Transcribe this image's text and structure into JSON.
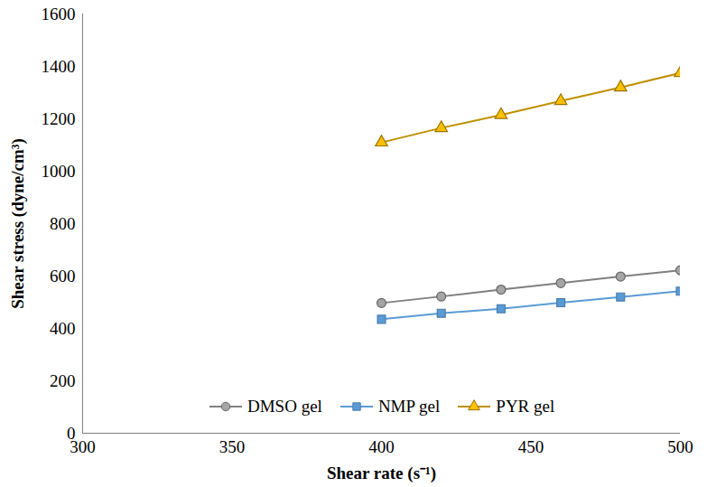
{
  "chart_data": {
    "type": "line",
    "x_label": "Shear rate (s⁻¹)",
    "y_label": "Shear stress (dyne/cm³)",
    "xlim": [
      300,
      500
    ],
    "xticks": [
      300,
      350,
      400,
      450,
      500
    ],
    "ylim": [
      0,
      1600
    ],
    "yticks": [
      0,
      200,
      400,
      600,
      800,
      1000,
      1200,
      1400,
      1600
    ],
    "grid": false,
    "legend": "bottom",
    "x": [
      400,
      420,
      440,
      460,
      480,
      500
    ],
    "series": [
      {
        "name": "DMSO gel",
        "color": "#808080",
        "marker": "circle",
        "values": [
          497,
          522,
          548,
          573,
          598,
          622
        ]
      },
      {
        "name": "NMP gel",
        "color": "#5b9bd5",
        "marker": "square",
        "values": [
          435,
          458,
          475,
          498,
          520,
          542
        ]
      },
      {
        "name": "PYR gel",
        "color": "#bf9000",
        "marker": "triangle",
        "values": [
          1110,
          1165,
          1215,
          1268,
          1320,
          1375
        ]
      }
    ]
  }
}
